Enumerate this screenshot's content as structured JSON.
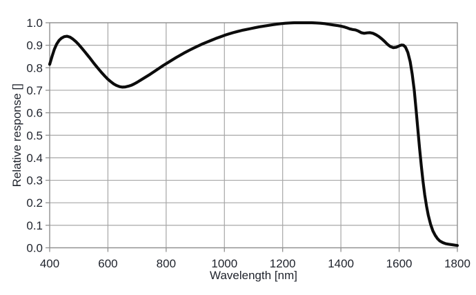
{
  "figure": {
    "background": "#ffffff",
    "grid_color": "#a6a6a6",
    "axis_color": "#8f8f8f",
    "text_color": "#1e222b",
    "curve_color": "#0c0c0c"
  },
  "chart_data": {
    "type": "line",
    "title": "",
    "xlabel": "Wavelength [nm]",
    "ylabel": "Relative response []",
    "xlim": [
      400,
      1800
    ],
    "ylim": [
      0.0,
      1.0
    ],
    "grid": true,
    "legend": "none",
    "x_ticks": [
      400,
      600,
      800,
      1000,
      1200,
      1400,
      1600,
      1800
    ],
    "x_tick_labels": [
      "400",
      "600",
      "800",
      "1000",
      "1200",
      "1400",
      "1600",
      "1800"
    ],
    "y_ticks": [
      0.0,
      0.1,
      0.2,
      0.3,
      0.4,
      0.5,
      0.6,
      0.7,
      0.8,
      0.9,
      1.0
    ],
    "y_tick_labels": [
      "0.0",
      "0.1",
      "0.2",
      "0.3",
      "0.4",
      "0.5",
      "0.6",
      "0.7",
      "0.8",
      "0.9",
      "1.0"
    ],
    "series": [
      {
        "name": "Relative response",
        "color": "#0c0c0c",
        "points": [
          [
            400,
            0.815
          ],
          [
            408,
            0.85
          ],
          [
            416,
            0.882
          ],
          [
            424,
            0.905
          ],
          [
            432,
            0.921
          ],
          [
            440,
            0.931
          ],
          [
            450,
            0.938
          ],
          [
            460,
            0.94
          ],
          [
            470,
            0.936
          ],
          [
            480,
            0.927
          ],
          [
            490,
            0.916
          ],
          [
            500,
            0.903
          ],
          [
            510,
            0.888
          ],
          [
            520,
            0.872
          ],
          [
            530,
            0.856
          ],
          [
            540,
            0.84
          ],
          [
            550,
            0.823
          ],
          [
            560,
            0.807
          ],
          [
            570,
            0.791
          ],
          [
            580,
            0.776
          ],
          [
            590,
            0.762
          ],
          [
            600,
            0.749
          ],
          [
            610,
            0.738
          ],
          [
            620,
            0.728
          ],
          [
            630,
            0.721
          ],
          [
            640,
            0.716
          ],
          [
            650,
            0.714
          ],
          [
            660,
            0.715
          ],
          [
            670,
            0.718
          ],
          [
            680,
            0.722
          ],
          [
            690,
            0.728
          ],
          [
            700,
            0.735
          ],
          [
            715,
            0.747
          ],
          [
            730,
            0.759
          ],
          [
            745,
            0.771
          ],
          [
            760,
            0.784
          ],
          [
            775,
            0.797
          ],
          [
            790,
            0.81
          ],
          [
            805,
            0.822
          ],
          [
            820,
            0.834
          ],
          [
            835,
            0.846
          ],
          [
            850,
            0.857
          ],
          [
            865,
            0.868
          ],
          [
            880,
            0.878
          ],
          [
            895,
            0.888
          ],
          [
            910,
            0.897
          ],
          [
            925,
            0.906
          ],
          [
            940,
            0.914
          ],
          [
            955,
            0.922
          ],
          [
            970,
            0.93
          ],
          [
            985,
            0.937
          ],
          [
            1000,
            0.944
          ],
          [
            1015,
            0.95
          ],
          [
            1030,
            0.956
          ],
          [
            1045,
            0.961
          ],
          [
            1060,
            0.966
          ],
          [
            1075,
            0.97
          ],
          [
            1090,
            0.974
          ],
          [
            1105,
            0.978
          ],
          [
            1120,
            0.982
          ],
          [
            1135,
            0.985
          ],
          [
            1150,
            0.988
          ],
          [
            1165,
            0.991
          ],
          [
            1180,
            0.994
          ],
          [
            1195,
            0.996
          ],
          [
            1210,
            0.998
          ],
          [
            1225,
            0.999
          ],
          [
            1240,
            1.0
          ],
          [
            1255,
            1.0
          ],
          [
            1270,
            1.0
          ],
          [
            1285,
            1.0
          ],
          [
            1300,
            1.0
          ],
          [
            1315,
            0.999
          ],
          [
            1330,
            0.998
          ],
          [
            1345,
            0.996
          ],
          [
            1360,
            0.993
          ],
          [
            1375,
            0.99
          ],
          [
            1390,
            0.987
          ],
          [
            1400,
            0.985
          ],
          [
            1410,
            0.982
          ],
          [
            1420,
            0.978
          ],
          [
            1430,
            0.973
          ],
          [
            1440,
            0.97
          ],
          [
            1450,
            0.968
          ],
          [
            1460,
            0.963
          ],
          [
            1470,
            0.956
          ],
          [
            1480,
            0.953
          ],
          [
            1490,
            0.955
          ],
          [
            1500,
            0.956
          ],
          [
            1510,
            0.953
          ],
          [
            1520,
            0.947
          ],
          [
            1530,
            0.939
          ],
          [
            1540,
            0.929
          ],
          [
            1550,
            0.917
          ],
          [
            1560,
            0.904
          ],
          [
            1570,
            0.894
          ],
          [
            1580,
            0.889
          ],
          [
            1590,
            0.891
          ],
          [
            1600,
            0.897
          ],
          [
            1608,
            0.901
          ],
          [
            1615,
            0.9
          ],
          [
            1622,
            0.891
          ],
          [
            1630,
            0.868
          ],
          [
            1638,
            0.827
          ],
          [
            1645,
            0.77
          ],
          [
            1652,
            0.7
          ],
          [
            1658,
            0.615
          ],
          [
            1664,
            0.53
          ],
          [
            1670,
            0.445
          ],
          [
            1676,
            0.365
          ],
          [
            1682,
            0.295
          ],
          [
            1688,
            0.235
          ],
          [
            1694,
            0.185
          ],
          [
            1700,
            0.145
          ],
          [
            1708,
            0.104
          ],
          [
            1716,
            0.075
          ],
          [
            1724,
            0.055
          ],
          [
            1732,
            0.04
          ],
          [
            1740,
            0.03
          ],
          [
            1750,
            0.023
          ],
          [
            1760,
            0.018
          ],
          [
            1770,
            0.016
          ],
          [
            1780,
            0.014
          ],
          [
            1790,
            0.012
          ],
          [
            1800,
            0.01
          ]
        ]
      }
    ]
  }
}
